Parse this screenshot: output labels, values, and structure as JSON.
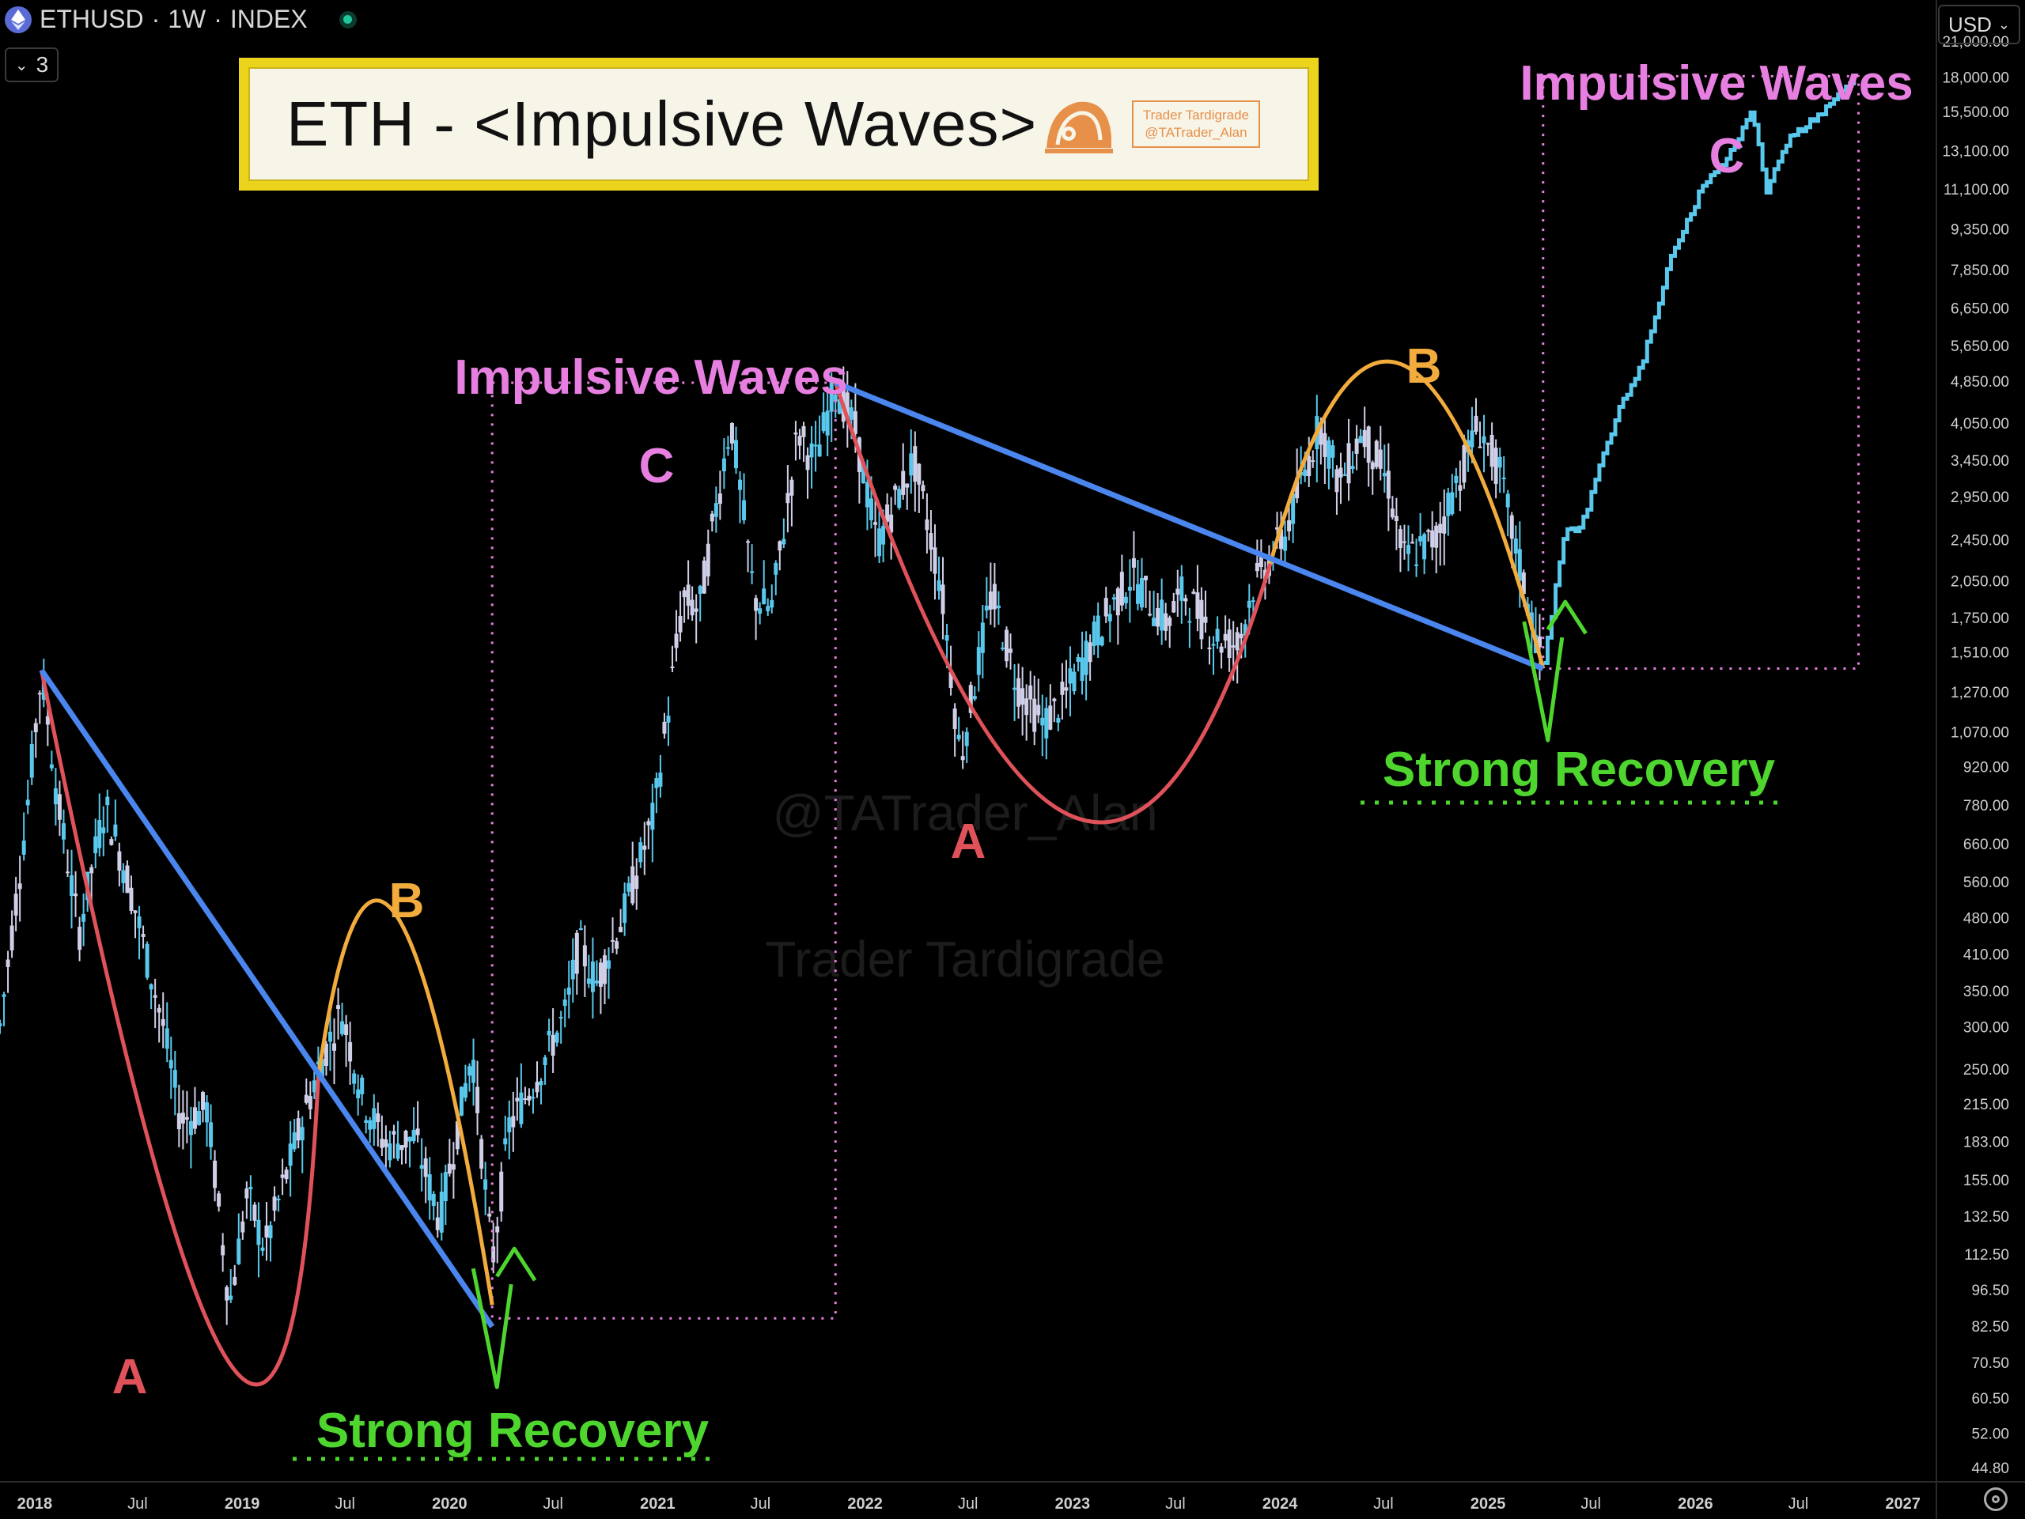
{
  "header": {
    "symbol": "ETHUSD",
    "sep1": "·",
    "interval": "1W",
    "sep2": "·",
    "exchange": "INDEX",
    "indicator_count": "3",
    "currency": "USD"
  },
  "title_box": {
    "text": "ETH - <Impulsive Waves>",
    "brand_line1": "Trader Tardigrade",
    "brand_line2": "@TATrader_Alan"
  },
  "colors": {
    "candle_down": "#d0cfe8",
    "candle_up": "#59c8ec",
    "trend_line": "#4a86ee",
    "wave_a": "#e0525a",
    "wave_b": "#f2ac3d",
    "wave_c": "#e77fe0",
    "recovery": "#4ed62f",
    "box": "#e77fe0",
    "background": "#000000"
  },
  "chart_data": {
    "type": "candlestick",
    "yscale": "log",
    "y_axis_ticks": [
      "21,000.00",
      "18,000.00",
      "15,500.00",
      "13,100.00",
      "11,100.00",
      "9,350.00",
      "7,850.00",
      "6,650.00",
      "5,650.00",
      "4,850.00",
      "4,050.00",
      "3,450.00",
      "2,950.00",
      "2,450.00",
      "2,050.00",
      "1,750.00",
      "1,510.00",
      "1,270.00",
      "1,070.00",
      "920.00",
      "780.00",
      "660.00",
      "560.00",
      "480.00",
      "410.00",
      "350.00",
      "300.00",
      "250.00",
      "215.00",
      "183.00",
      "155.00",
      "132.50",
      "112.50",
      "96.50",
      "82.50",
      "70.50",
      "60.50",
      "52.00",
      "44.80"
    ],
    "x_axis_ticks": [
      {
        "label": "2018",
        "date": "2018-01-01"
      },
      {
        "label": "Jul",
        "date": "2018-07-01"
      },
      {
        "label": "2019",
        "date": "2019-01-01"
      },
      {
        "label": "Jul",
        "date": "2019-07-01"
      },
      {
        "label": "2020",
        "date": "2020-01-01"
      },
      {
        "label": "Jul",
        "date": "2020-07-01"
      },
      {
        "label": "2021",
        "date": "2021-01-01"
      },
      {
        "label": "Jul",
        "date": "2021-07-01"
      },
      {
        "label": "2022",
        "date": "2022-01-01"
      },
      {
        "label": "Jul",
        "date": "2022-07-01"
      },
      {
        "label": "2023",
        "date": "2023-01-01"
      },
      {
        "label": "Jul",
        "date": "2023-07-01"
      },
      {
        "label": "2024",
        "date": "2024-01-01"
      },
      {
        "label": "Jul",
        "date": "2024-07-01"
      },
      {
        "label": "2025",
        "date": "2025-01-01"
      },
      {
        "label": "Jul",
        "date": "2025-07-01"
      },
      {
        "label": "2026",
        "date": "2026-01-01"
      },
      {
        "label": "Jul",
        "date": "2026-07-01"
      },
      {
        "label": "2027",
        "date": "2027-01-01"
      }
    ],
    "xlim": [
      "2017-11-01",
      "2027-03-01"
    ],
    "ylim": [
      42,
      25000
    ],
    "price_path": [
      [
        "2017-11-01",
        300
      ],
      [
        "2017-12-15",
        700
      ],
      [
        "2018-01-13",
        1390
      ],
      [
        "2018-02-10",
        800
      ],
      [
        "2018-03-20",
        450
      ],
      [
        "2018-05-05",
        780
      ],
      [
        "2018-06-15",
        560
      ],
      [
        "2018-08-15",
        300
      ],
      [
        "2018-09-15",
        200
      ],
      [
        "2018-11-01",
        210
      ],
      [
        "2018-12-10",
        90
      ],
      [
        "2019-01-10",
        145
      ],
      [
        "2019-02-10",
        115
      ],
      [
        "2019-04-01",
        175
      ],
      [
        "2019-05-15",
        250
      ],
      [
        "2019-06-25",
        320
      ],
      [
        "2019-08-01",
        220
      ],
      [
        "2019-09-10",
        180
      ],
      [
        "2019-11-01",
        185
      ],
      [
        "2019-12-15",
        130
      ],
      [
        "2020-02-10",
        270
      ],
      [
        "2020-03-16",
        108
      ],
      [
        "2020-04-15",
        195
      ],
      [
        "2020-06-01",
        240
      ],
      [
        "2020-07-25",
        320
      ],
      [
        "2020-08-15",
        430
      ],
      [
        "2020-09-15",
        360
      ],
      [
        "2020-11-01",
        480
      ],
      [
        "2020-12-25",
        740
      ],
      [
        "2021-02-15",
        1900
      ],
      [
        "2021-03-15",
        1800
      ],
      [
        "2021-05-10",
        4100
      ],
      [
        "2021-06-20",
        1900
      ],
      [
        "2021-07-20",
        1800
      ],
      [
        "2021-08-25",
        3200
      ],
      [
        "2021-09-05",
        3900
      ],
      [
        "2021-10-05",
        3400
      ],
      [
        "2021-11-10",
        4800
      ],
      [
        "2021-12-15",
        3900
      ],
      [
        "2022-01-22",
        2400
      ],
      [
        "2022-03-28",
        3450
      ],
      [
        "2022-05-15",
        2000
      ],
      [
        "2022-06-18",
        950
      ],
      [
        "2022-08-12",
        1950
      ],
      [
        "2022-09-25",
        1320
      ],
      [
        "2022-11-10",
        1100
      ],
      [
        "2022-12-15",
        1220
      ],
      [
        "2023-02-15",
        1650
      ],
      [
        "2023-04-15",
        2100
      ],
      [
        "2023-06-15",
        1700
      ],
      [
        "2023-07-15",
        1950
      ],
      [
        "2023-09-10",
        1600
      ],
      [
        "2023-10-20",
        1550
      ],
      [
        "2023-11-15",
        2000
      ],
      [
        "2024-01-10",
        2500
      ],
      [
        "2024-03-12",
        4050
      ],
      [
        "2024-04-15",
        3100
      ],
      [
        "2024-05-25",
        3900
      ],
      [
        "2024-07-10",
        3100
      ],
      [
        "2024-08-05",
        2250
      ],
      [
        "2024-10-01",
        2450
      ],
      [
        "2024-11-10",
        3200
      ],
      [
        "2024-12-15",
        4000
      ],
      [
        "2025-01-20",
        3300
      ],
      [
        "2025-02-25",
        2200
      ],
      [
        "2025-04-08",
        1400
      ],
      [
        "2025-05-15",
        2500
      ],
      [
        "2025-06-15",
        2600
      ],
      [
        "2025-07-15",
        3300
      ],
      [
        "2025-08-20",
        4300
      ],
      [
        "2025-10-01",
        5300
      ],
      [
        "2025-11-15",
        8000
      ],
      [
        "2026-01-10",
        11000
      ],
      [
        "2026-03-15",
        13500
      ],
      [
        "2026-04-10",
        15800
      ],
      [
        "2026-05-05",
        11000
      ],
      [
        "2026-06-15",
        13800
      ],
      [
        "2026-08-15",
        15500
      ],
      [
        "2026-10-10",
        18000
      ]
    ],
    "forecast_from": "2025-04-08",
    "trend_lines": [
      {
        "from": [
          "2018-01-13",
          1390
        ],
        "to": [
          "2020-03-16",
          82
        ]
      },
      {
        "from": [
          "2021-11-10",
          4800
        ],
        "to": [
          "2025-04-08",
          1400
        ]
      }
    ],
    "wave_arcs": [
      {
        "wave": "A",
        "points": [
          [
            "2018-01-13",
            1390
          ],
          [
            "2018-12-10",
            70
          ],
          [
            "2019-05-15",
            240
          ]
        ]
      },
      {
        "wave": "B",
        "points": [
          [
            "2019-05-15",
            240
          ],
          [
            "2019-09-25",
            490
          ],
          [
            "2020-03-16",
            90
          ]
        ]
      },
      {
        "wave": "A",
        "points": [
          [
            "2021-11-10",
            4800
          ],
          [
            "2023-01-01",
            740
          ],
          [
            "2023-12-15",
            2200
          ]
        ]
      },
      {
        "wave": "B",
        "points": [
          [
            "2023-12-15",
            2200
          ],
          [
            "2024-08-01",
            5200
          ],
          [
            "2025-04-08",
            1400
          ]
        ]
      }
    ],
    "boxes": [
      {
        "x": [
          "2020-03-16",
          "2021-11-10"
        ],
        "y": [
          85,
          4800
        ]
      },
      {
        "x": [
          "2025-04-08",
          "2026-10-15"
        ],
        "y": [
          1400,
          18000
        ]
      }
    ],
    "recovery_marks": [
      [
        "2020-03-16",
        83
      ],
      [
        "2025-04-08",
        1350
      ]
    ],
    "annotations": {
      "wave_a_1": "A",
      "wave_b_1": "B",
      "wave_c_1": "C",
      "wave_a_2": "A",
      "wave_b_2": "B",
      "wave_c_2": "C",
      "impulsive_1": "Impulsive Waves",
      "impulsive_2": "Impulsive Waves",
      "recovery_1": "Strong Recovery",
      "recovery_2": "Strong Recovery"
    },
    "watermark_1": "@TATrader_Alan",
    "watermark_2": "Trader Tardigrade"
  }
}
